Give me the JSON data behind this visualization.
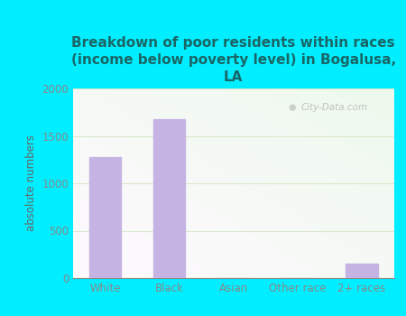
{
  "categories": [
    "White",
    "Black",
    "Asian",
    "Other race",
    "2+ races"
  ],
  "values": [
    1280,
    1680,
    0,
    0,
    150
  ],
  "bar_color": "#c5b4e3",
  "title": "Breakdown of poor residents within races\n(income below poverty level) in Bogalusa,\nLA",
  "ylabel": "absolute numbers",
  "ylim": [
    0,
    2000
  ],
  "yticks": [
    0,
    500,
    1000,
    1500,
    2000
  ],
  "background_color": "#00eeff",
  "title_color": "#1a6666",
  "title_fontsize": 11,
  "ylabel_color": "#666666",
  "tick_color": "#888888",
  "watermark": "City-Data.com",
  "grid_color": "#d8e8cc"
}
